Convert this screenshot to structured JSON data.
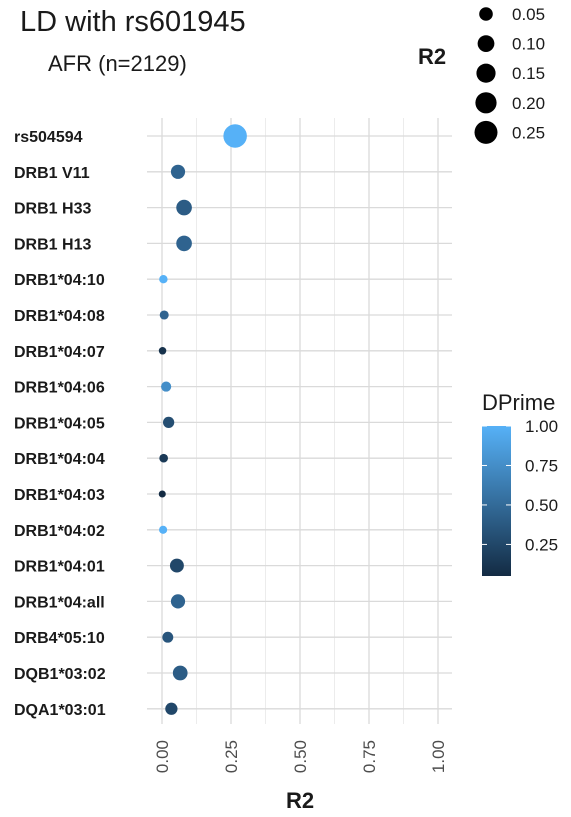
{
  "title": "LD with rs601945",
  "subtitle": "AFR (n=2129)",
  "chart_data": {
    "type": "scatter",
    "xlabel": "R2",
    "xlim": [
      0,
      1
    ],
    "xticks": [
      "0.00",
      "0.25",
      "0.50",
      "0.75",
      "1.00"
    ],
    "grid": true,
    "categories": [
      "rs504594",
      "DRB1 V11",
      "DRB1 H33",
      "DRB1 H13",
      "DRB1*04:10",
      "DRB1*04:08",
      "DRB1*04:07",
      "DRB1*04:06",
      "DRB1*04:05",
      "DRB1*04:04",
      "DRB1*04:03",
      "DRB1*04:02",
      "DRB1*04:01",
      "DRB1*04:all",
      "DRB4*05:10",
      "DQB1*03:02",
      "DQA1*03:01"
    ],
    "r2": [
      0.265,
      0.058,
      0.08,
      0.08,
      0.005,
      0.008,
      0.002,
      0.015,
      0.024,
      0.006,
      0.001,
      0.004,
      0.054,
      0.058,
      0.021,
      0.066,
      0.034
    ],
    "dprime": [
      1.0,
      0.45,
      0.4,
      0.45,
      1.0,
      0.45,
      0.1,
      0.75,
      0.3,
      0.15,
      0.05,
      1.0,
      0.25,
      0.45,
      0.35,
      0.4,
      0.25
    ],
    "size_legend": {
      "title": "R2",
      "placement": "top-right",
      "labels": [
        "0.05",
        "0.10",
        "0.15",
        "0.20",
        "0.25"
      ],
      "values": [
        0.05,
        0.1,
        0.15,
        0.2,
        0.25
      ]
    },
    "color_legend": {
      "title": "DPrime",
      "placement": "right",
      "labels": [
        "1.00",
        "0.75",
        "0.50",
        "0.25"
      ],
      "values": [
        1.0,
        0.75,
        0.5,
        0.25
      ],
      "low_color": "#132B43",
      "high_color": "#56B1F7"
    }
  }
}
